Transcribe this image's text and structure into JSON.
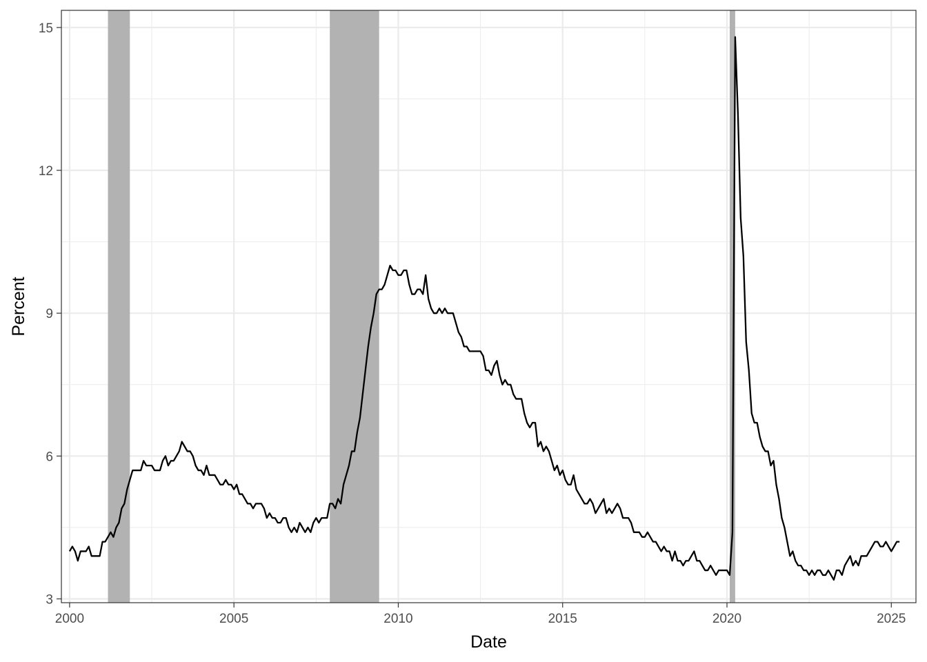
{
  "chart_data": {
    "type": "line",
    "title": "",
    "xlabel": "Date",
    "ylabel": "Percent",
    "xlim": [
      1999.75,
      2025.75
    ],
    "ylim": [
      2.92,
      15.36
    ],
    "x_ticks": [
      2000,
      2005,
      2010,
      2015,
      2020,
      2025
    ],
    "y_ticks": [
      3,
      6,
      9,
      12,
      15
    ],
    "grid": true,
    "legend": "none",
    "colors": {
      "line": "#000000",
      "recession": "#b2b2b2",
      "grid": "#ebebeb",
      "border": "#333333"
    },
    "recessions": [
      {
        "start": "2001-03",
        "end": "2001-11"
      },
      {
        "start": "2007-12",
        "end": "2009-06"
      },
      {
        "start": "2020-02",
        "end": "2020-04"
      }
    ],
    "series": [
      {
        "start": "2000-01",
        "frequency": "monthly",
        "values": [
          4.0,
          4.1,
          4.0,
          3.8,
          4.0,
          4.0,
          4.0,
          4.1,
          3.9,
          3.9,
          3.9,
          3.9,
          4.2,
          4.2,
          4.3,
          4.4,
          4.3,
          4.5,
          4.6,
          4.9,
          5.0,
          5.3,
          5.5,
          5.7,
          5.7,
          5.7,
          5.7,
          5.9,
          5.8,
          5.8,
          5.8,
          5.7,
          5.7,
          5.7,
          5.9,
          6.0,
          5.8,
          5.9,
          5.9,
          6.0,
          6.1,
          6.3,
          6.2,
          6.1,
          6.1,
          6.0,
          5.8,
          5.7,
          5.7,
          5.6,
          5.8,
          5.6,
          5.6,
          5.6,
          5.5,
          5.4,
          5.4,
          5.5,
          5.4,
          5.4,
          5.3,
          5.4,
          5.2,
          5.2,
          5.1,
          5.0,
          5.0,
          4.9,
          5.0,
          5.0,
          5.0,
          4.9,
          4.7,
          4.8,
          4.7,
          4.7,
          4.6,
          4.6,
          4.7,
          4.7,
          4.5,
          4.4,
          4.5,
          4.4,
          4.6,
          4.5,
          4.4,
          4.5,
          4.4,
          4.6,
          4.7,
          4.6,
          4.7,
          4.7,
          4.7,
          5.0,
          5.0,
          4.9,
          5.1,
          5.0,
          5.4,
          5.6,
          5.8,
          6.1,
          6.1,
          6.5,
          6.8,
          7.3,
          7.8,
          8.3,
          8.7,
          9.0,
          9.4,
          9.5,
          9.5,
          9.6,
          9.8,
          10.0,
          9.9,
          9.9,
          9.8,
          9.8,
          9.9,
          9.9,
          9.6,
          9.4,
          9.4,
          9.5,
          9.5,
          9.4,
          9.8,
          9.3,
          9.1,
          9.0,
          9.0,
          9.1,
          9.0,
          9.1,
          9.0,
          9.0,
          9.0,
          8.8,
          8.6,
          8.5,
          8.3,
          8.3,
          8.2,
          8.2,
          8.2,
          8.2,
          8.2,
          8.1,
          7.8,
          7.8,
          7.7,
          7.9,
          8.0,
          7.7,
          7.5,
          7.6,
          7.5,
          7.5,
          7.3,
          7.2,
          7.2,
          7.2,
          6.9,
          6.7,
          6.6,
          6.7,
          6.7,
          6.2,
          6.3,
          6.1,
          6.2,
          6.1,
          5.9,
          5.7,
          5.8,
          5.6,
          5.7,
          5.5,
          5.4,
          5.4,
          5.6,
          5.3,
          5.2,
          5.1,
          5.0,
          5.0,
          5.1,
          5.0,
          4.8,
          4.9,
          5.0,
          5.1,
          4.8,
          4.9,
          4.8,
          4.9,
          5.0,
          4.9,
          4.7,
          4.7,
          4.7,
          4.6,
          4.4,
          4.4,
          4.4,
          4.3,
          4.3,
          4.4,
          4.3,
          4.2,
          4.2,
          4.1,
          4.0,
          4.1,
          4.0,
          4.0,
          3.8,
          4.0,
          3.8,
          3.8,
          3.7,
          3.8,
          3.8,
          3.9,
          4.0,
          3.8,
          3.8,
          3.7,
          3.6,
          3.6,
          3.7,
          3.6,
          3.5,
          3.6,
          3.6,
          3.6,
          3.6,
          3.5,
          4.4,
          14.8,
          13.2,
          11.0,
          10.2,
          8.4,
          7.8,
          6.9,
          6.7,
          6.7,
          6.4,
          6.2,
          6.1,
          6.1,
          5.8,
          5.9,
          5.4,
          5.1,
          4.7,
          4.5,
          4.2,
          3.9,
          4.0,
          3.8,
          3.7,
          3.7,
          3.6,
          3.6,
          3.5,
          3.6,
          3.5,
          3.6,
          3.6,
          3.5,
          3.5,
          3.6,
          3.5,
          3.4,
          3.6,
          3.6,
          3.5,
          3.7,
          3.8,
          3.9,
          3.7,
          3.8,
          3.7,
          3.9,
          3.9,
          3.9,
          4.0,
          4.1,
          4.2,
          4.2,
          4.1,
          4.1,
          4.2,
          4.1,
          4.0,
          4.1,
          4.2,
          4.2
        ]
      }
    ]
  }
}
